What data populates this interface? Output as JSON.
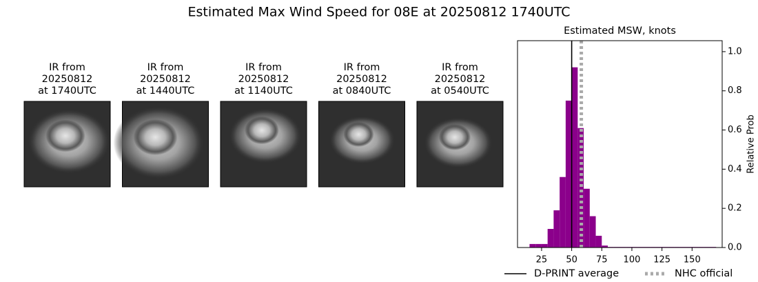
{
  "title": "Estimated Max Wind Speed for 08E at 20250812 1740UTC",
  "images": [
    {
      "title_lines": [
        "IR from",
        "20250812",
        "at 1740UTC"
      ]
    },
    {
      "title_lines": [
        "IR from",
        "20250812",
        "at 1440UTC"
      ]
    },
    {
      "title_lines": [
        "IR from",
        "20250812",
        "at 1140UTC"
      ]
    },
    {
      "title_lines": [
        "IR from",
        "20250812",
        "at 0840UTC"
      ]
    },
    {
      "title_lines": [
        "IR from",
        "20250812",
        "at 0540UTC"
      ]
    }
  ],
  "chart_data": {
    "type": "histogram",
    "title": "Estimated MSW, knots",
    "ylabel": "Relative Prob",
    "bins": [
      15,
      20,
      25,
      30,
      35,
      40,
      45,
      50,
      55,
      60,
      65,
      70,
      75,
      80,
      85,
      90,
      95,
      100,
      105,
      110,
      115,
      120,
      125,
      130,
      135,
      140,
      145,
      150,
      155,
      160,
      165,
      170
    ],
    "counts": [
      0.018,
      0.018,
      0.018,
      0.095,
      0.19,
      0.36,
      0.75,
      0.92,
      0.61,
      0.3,
      0.16,
      0.06,
      0.01,
      0.003,
      0.003,
      0.003,
      0.003,
      0.003,
      0.003,
      0.003,
      0.003,
      0.003,
      0.003,
      0.003,
      0.003,
      0.003,
      0.003,
      0.003,
      0.003,
      0.003,
      0.003
    ],
    "color": "#8b008b",
    "xlim": [
      5,
      175
    ],
    "xticks": [
      25,
      50,
      75,
      100,
      125,
      150
    ],
    "ylim": [
      0,
      1.056
    ],
    "yticks": [
      {
        "value": 0,
        "label": "0.0"
      },
      0.2,
      0.4,
      0.6,
      0.8,
      {
        "value": 1,
        "label": "1.0"
      }
    ],
    "yaxis_side": "right",
    "vlines": [
      {
        "name": "D-PRINT average",
        "value": 50,
        "color": "#000000",
        "style": "solid"
      },
      {
        "name": "NHC official",
        "value": 58,
        "color": "#aaaaaa",
        "style": "dotted"
      }
    ],
    "legend": "bottom"
  }
}
